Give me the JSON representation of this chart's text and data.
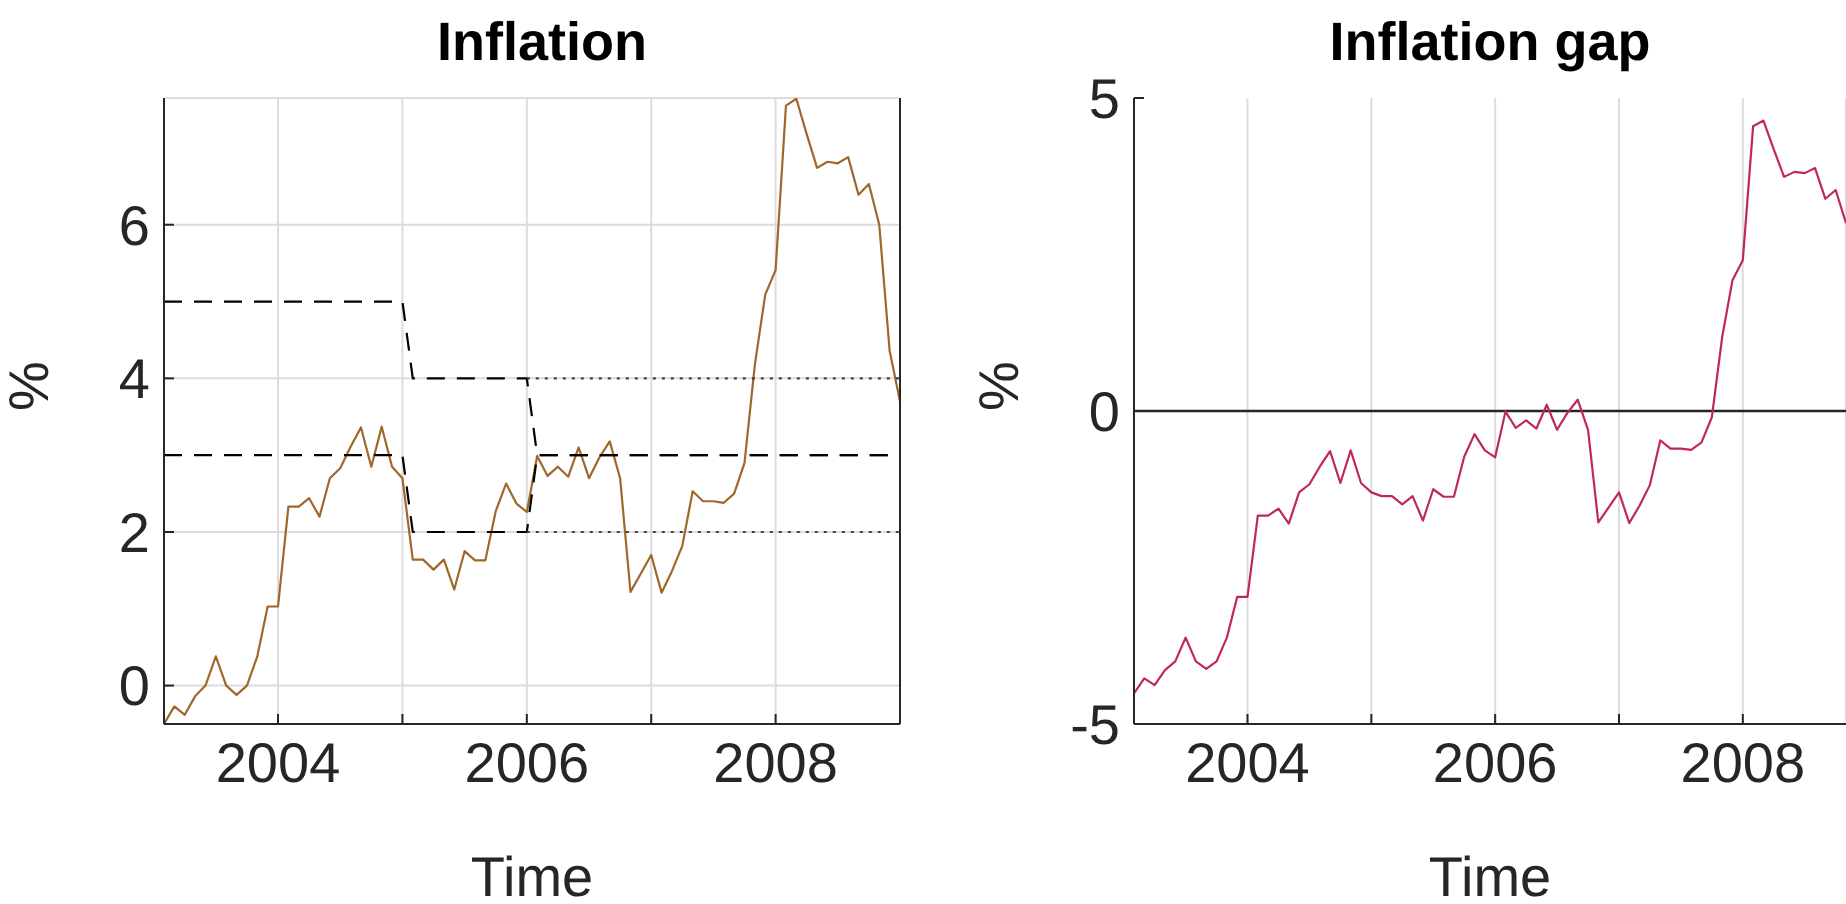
{
  "chart_data": [
    {
      "type": "line",
      "title": "Inflation",
      "xlabel": "Time",
      "ylabel": "%",
      "x": [
        "2003-02",
        "2003-03",
        "2003-04",
        "2003-05",
        "2003-06",
        "2003-07",
        "2003-08",
        "2003-09",
        "2003-10",
        "2003-11",
        "2003-12",
        "2004-01",
        "2004-02",
        "2004-03",
        "2004-04",
        "2004-05",
        "2004-06",
        "2004-07",
        "2004-08",
        "2004-09",
        "2004-10",
        "2004-11",
        "2004-12",
        "2005-01",
        "2005-02",
        "2005-03",
        "2005-04",
        "2005-05",
        "2005-06",
        "2005-07",
        "2005-08",
        "2005-09",
        "2005-10",
        "2005-11",
        "2005-12",
        "2006-01",
        "2006-02",
        "2006-03",
        "2006-04",
        "2006-05",
        "2006-06",
        "2006-07",
        "2006-08",
        "2006-09",
        "2006-10",
        "2006-11",
        "2006-12",
        "2007-01",
        "2007-02",
        "2007-03",
        "2007-04",
        "2007-05",
        "2007-06",
        "2007-07",
        "2007-08",
        "2007-09",
        "2007-10",
        "2007-11",
        "2007-12",
        "2008-01",
        "2008-02",
        "2008-03",
        "2008-04",
        "2008-05",
        "2008-06",
        "2008-07",
        "2008-08",
        "2008-09",
        "2008-10",
        "2008-11",
        "2008-12",
        "2009-01"
      ],
      "xlim": [
        "2003-02",
        "2009-01"
      ],
      "xticks": [
        "2004",
        {
          "value": "2005",
          "label": null
        },
        "2006",
        {
          "value": "2007",
          "label": null
        },
        "2008"
      ],
      "ylim": [
        -0.5,
        7.65
      ],
      "yticks": [
        0,
        2,
        4,
        6
      ],
      "grid": true,
      "series": [
        {
          "color": "#a0672a",
          "values": [
            -0.5,
            -0.27,
            -0.38,
            -0.14,
            0,
            0.38,
            0,
            -0.12,
            0,
            0.38,
            1.03,
            1.03,
            2.33,
            2.33,
            2.44,
            2.2,
            2.7,
            2.83,
            3.11,
            3.36,
            2.85,
            3.37,
            2.85,
            2.7,
            1.64,
            1.64,
            1.51,
            1.64,
            1.25,
            1.75,
            1.63,
            1.63,
            2.27,
            2.63,
            2.37,
            2.26,
            2.99,
            2.73,
            2.85,
            2.72,
            3.1,
            2.7,
            2.97,
            3.18,
            2.7,
            1.22,
            1.46,
            1.7,
            1.21,
            1.49,
            1.82,
            2.53,
            2.4,
            2.4,
            2.38,
            2.5,
            2.9,
            4.18,
            5.09,
            5.41,
            7.55,
            7.64,
            7.18,
            6.74,
            6.82,
            6.8,
            6.88,
            6.39,
            6.53,
            6.0,
            4.36,
            3.7
          ]
        },
        {
          "type": "line",
          "color": "#000000",
          "line_style": "dashed",
          "x": [
            "2003-02",
            "2005-01",
            "2005-02",
            "2006-01",
            "2006-02",
            "2009-01"
          ],
          "values": [
            5,
            5,
            4,
            4,
            3,
            3
          ]
        },
        {
          "type": "line",
          "color": "#000000",
          "line_style": "dashed",
          "x": [
            "2003-02",
            "2005-01",
            "2005-02",
            "2006-01",
            "2006-02",
            "2009-01"
          ],
          "values": [
            3,
            3,
            2,
            2,
            3,
            3
          ]
        },
        {
          "type": "line",
          "color": "#404040",
          "line_style": "dotted",
          "x": [
            "2006-01",
            "2009-01"
          ],
          "values": [
            4,
            4
          ]
        },
        {
          "type": "line",
          "color": "#404040",
          "line_style": "dotted",
          "x": [
            "2006-01",
            "2009-01"
          ],
          "values": [
            2,
            2
          ]
        }
      ]
    },
    {
      "type": "line",
      "title": "Inflation gap",
      "xlabel": "Time",
      "ylabel": "%",
      "x": [
        "2003-02",
        "2003-03",
        "2003-04",
        "2003-05",
        "2003-06",
        "2003-07",
        "2003-08",
        "2003-09",
        "2003-10",
        "2003-11",
        "2003-12",
        "2004-01",
        "2004-02",
        "2004-03",
        "2004-04",
        "2004-05",
        "2004-06",
        "2004-07",
        "2004-08",
        "2004-09",
        "2004-10",
        "2004-11",
        "2004-12",
        "2005-01",
        "2005-02",
        "2005-03",
        "2005-04",
        "2005-05",
        "2005-06",
        "2005-07",
        "2005-08",
        "2005-09",
        "2005-10",
        "2005-11",
        "2005-12",
        "2006-01",
        "2006-02",
        "2006-03",
        "2006-04",
        "2006-05",
        "2006-06",
        "2006-07",
        "2006-08",
        "2006-09",
        "2006-10",
        "2006-11",
        "2006-12",
        "2007-01",
        "2007-02",
        "2007-03",
        "2007-04",
        "2007-05",
        "2007-06",
        "2007-07",
        "2007-08",
        "2007-09",
        "2007-10",
        "2007-11",
        "2007-12",
        "2008-01",
        "2008-02",
        "2008-03",
        "2008-04",
        "2008-05",
        "2008-06",
        "2008-07",
        "2008-08",
        "2008-09",
        "2008-10",
        "2008-11"
      ],
      "xlim": [
        "2003-02",
        "2008-11"
      ],
      "xticks": [
        "2004",
        {
          "value": "2005",
          "label": null
        },
        "2006",
        {
          "value": "2007",
          "label": null
        },
        "2008"
      ],
      "ylim": [
        -5,
        5
      ],
      "yticks": [
        -5,
        0,
        5
      ],
      "grid": "x",
      "ref_lines": [
        {
          "axis": "y",
          "value": 0,
          "color": "#262626"
        }
      ],
      "series": [
        {
          "color": "#c0285a",
          "values": [
            -4.51,
            -4.27,
            -4.38,
            -4.14,
            -4,
            -3.62,
            -4,
            -4.12,
            -4,
            -3.62,
            -2.97,
            -2.97,
            -1.67,
            -1.67,
            -1.56,
            -1.8,
            -1.3,
            -1.17,
            -0.89,
            -0.64,
            -1.15,
            -0.63,
            -1.15,
            -1.3,
            -1.36,
            -1.36,
            -1.49,
            -1.36,
            -1.75,
            -1.25,
            -1.37,
            -1.37,
            -0.73,
            -0.37,
            -0.63,
            -0.74,
            -0.01,
            -0.27,
            -0.15,
            -0.28,
            0.1,
            -0.3,
            -0.03,
            0.18,
            -0.3,
            -1.78,
            -1.54,
            -1.3,
            -1.79,
            -1.51,
            -1.18,
            -0.47,
            -0.6,
            -0.6,
            -0.62,
            -0.5,
            -0.1,
            1.18,
            2.09,
            2.41,
            4.55,
            4.64,
            4.18,
            3.74,
            3.82,
            3.8,
            3.88,
            3.39,
            3.53,
            3.0
          ]
        }
      ]
    }
  ]
}
